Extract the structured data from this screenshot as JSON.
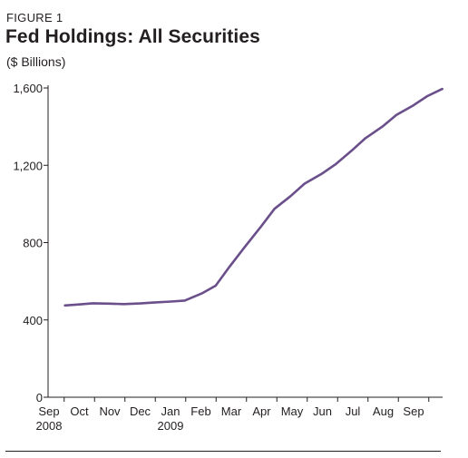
{
  "figure_label": "FIGURE 1",
  "chart_data": {
    "type": "line",
    "title": "Fed Holdings: All Securities",
    "subtitle": "($ Billions)",
    "xlabel": "",
    "ylabel": "",
    "x_ticks": [
      "Sep\n2008",
      "Oct",
      "Nov",
      "Dec",
      "Jan\n2009",
      "Feb",
      "Mar",
      "Apr",
      "May",
      "Jun",
      "Jul",
      "Aug",
      "Sep"
    ],
    "ylim": [
      0,
      1600
    ],
    "y_ticks": [
      0,
      400,
      800,
      1200,
      1600
    ],
    "y_tick_labels": [
      "0",
      "400",
      "800",
      "1,200",
      "1,600"
    ],
    "grid": false,
    "series": [
      {
        "color": "#6a4f8b",
        "x": [
          "2008-09-17",
          "2008-10-01",
          "2008-10-15",
          "2008-11-01",
          "2008-11-15",
          "2008-12-01",
          "2008-12-15",
          "2009-01-01",
          "2009-01-15",
          "2009-02-01",
          "2009-02-15",
          "2009-03-01",
          "2009-03-15",
          "2009-04-01",
          "2009-04-15",
          "2009-05-01",
          "2009-05-15",
          "2009-06-01",
          "2009-06-15",
          "2009-07-01",
          "2009-07-15",
          "2009-08-01",
          "2009-08-15",
          "2009-09-01",
          "2009-09-15",
          "2009-09-30"
        ],
        "values": [
          475,
          480,
          486,
          484,
          482,
          485,
          490,
          495,
          500,
          537,
          577,
          676,
          770,
          880,
          975,
          1040,
          1105,
          1155,
          1205,
          1275,
          1340,
          1400,
          1460,
          1510,
          1558,
          1595
        ]
      }
    ]
  }
}
